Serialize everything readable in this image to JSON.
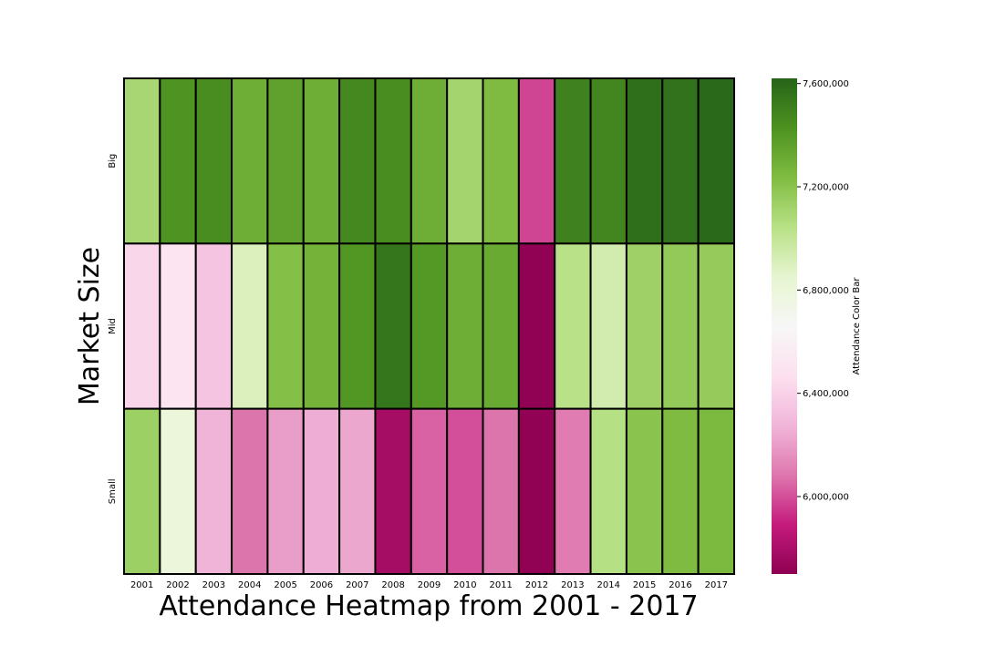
{
  "chart_data": {
    "type": "heatmap",
    "title": "",
    "xlabel": "Attendance Heatmap from 2001 - 2017",
    "ylabel": "Market Size",
    "x_categories": [
      "2001",
      "2002",
      "2003",
      "2004",
      "2005",
      "2006",
      "2007",
      "2008",
      "2009",
      "2010",
      "2011",
      "2012",
      "2013",
      "2014",
      "2015",
      "2016",
      "2017"
    ],
    "y_categories": [
      "Big",
      "Mid",
      "Small"
    ],
    "values": [
      [
        7100000,
        7420000,
        7450000,
        7300000,
        7360000,
        7300000,
        7470000,
        7450000,
        7300000,
        7110000,
        7240000,
        5980000,
        7500000,
        7480000,
        7580000,
        7560000,
        7600000
      ],
      [
        6420000,
        6500000,
        6340000,
        6900000,
        7220000,
        7280000,
        7410000,
        7550000,
        7400000,
        7300000,
        7320000,
        5710000,
        7040000,
        6940000,
        7130000,
        7170000,
        7160000
      ],
      [
        7140000,
        6800000,
        6270000,
        6080000,
        6200000,
        6250000,
        6230000,
        5780000,
        6040000,
        6000000,
        6080000,
        5710000,
        6100000,
        7050000,
        7200000,
        7240000,
        7250000
      ]
    ],
    "colorbar": {
      "label": "Attendance Color Bar",
      "min": 5700000,
      "max": 7620000,
      "ticks": [
        6000000,
        6400000,
        6800000,
        7200000,
        7600000
      ],
      "tick_labels": [
        "6,000,000",
        "6,400,000",
        "6,800,000",
        "7,200,000",
        "7,600,000"
      ],
      "colormap": "PiYG"
    },
    "cell_border_color": "#000000",
    "legend": "colorbar-right"
  }
}
